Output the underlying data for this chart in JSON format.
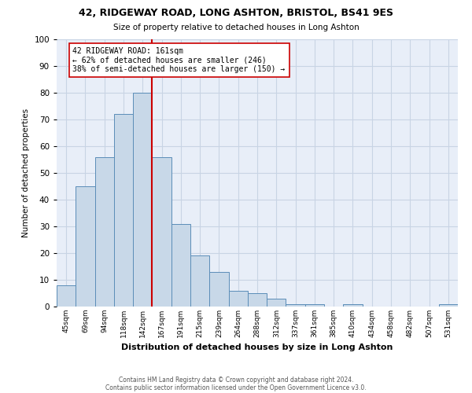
{
  "title1": "42, RIDGEWAY ROAD, LONG ASHTON, BRISTOL, BS41 9ES",
  "title2": "Size of property relative to detached houses in Long Ashton",
  "xlabel": "Distribution of detached houses by size in Long Ashton",
  "ylabel": "Number of detached properties",
  "footer1": "Contains HM Land Registry data © Crown copyright and database right 2024.",
  "footer2": "Contains public sector information licensed under the Open Government Licence v3.0.",
  "bar_labels": [
    "45sqm",
    "69sqm",
    "94sqm",
    "118sqm",
    "142sqm",
    "167sqm",
    "191sqm",
    "215sqm",
    "239sqm",
    "264sqm",
    "288sqm",
    "312sqm",
    "337sqm",
    "361sqm",
    "385sqm",
    "410sqm",
    "434sqm",
    "458sqm",
    "482sqm",
    "507sqm",
    "531sqm"
  ],
  "bar_values": [
    8,
    45,
    56,
    72,
    80,
    56,
    31,
    19,
    13,
    6,
    5,
    3,
    1,
    1,
    0,
    1,
    0,
    0,
    0,
    0,
    1
  ],
  "bar_color": "#c8d8e8",
  "bar_edge_color": "#5b8db8",
  "grid_color": "#c8d4e4",
  "bg_color": "#e8eef8",
  "vline_color": "#cc0000",
  "annotation_text1": "42 RIDGEWAY ROAD: 161sqm",
  "annotation_text2": "← 62% of detached houses are smaller (246)",
  "annotation_text3": "38% of semi-detached houses are larger (150) →",
  "annotation_box_color": "#ffffff",
  "annotation_box_edge": "#cc0000",
  "ylim": [
    0,
    100
  ],
  "yticks": [
    0,
    10,
    20,
    30,
    40,
    50,
    60,
    70,
    80,
    90,
    100
  ],
  "vline_x_data": 4.22
}
